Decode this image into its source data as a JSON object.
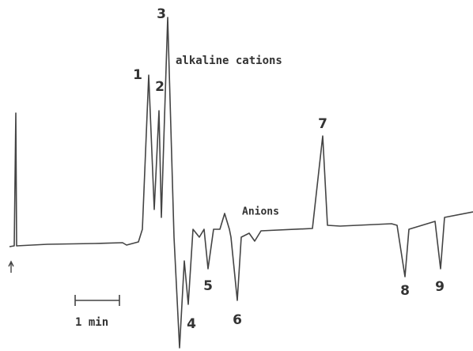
{
  "peaks": [
    "1",
    "2",
    "3",
    "4",
    "5",
    "6",
    "7",
    "8",
    "9"
  ],
  "annotations": {
    "cations": "alkaline cations",
    "anions": "Anions"
  },
  "scale_bar": {
    "label": "1 min"
  }
}
